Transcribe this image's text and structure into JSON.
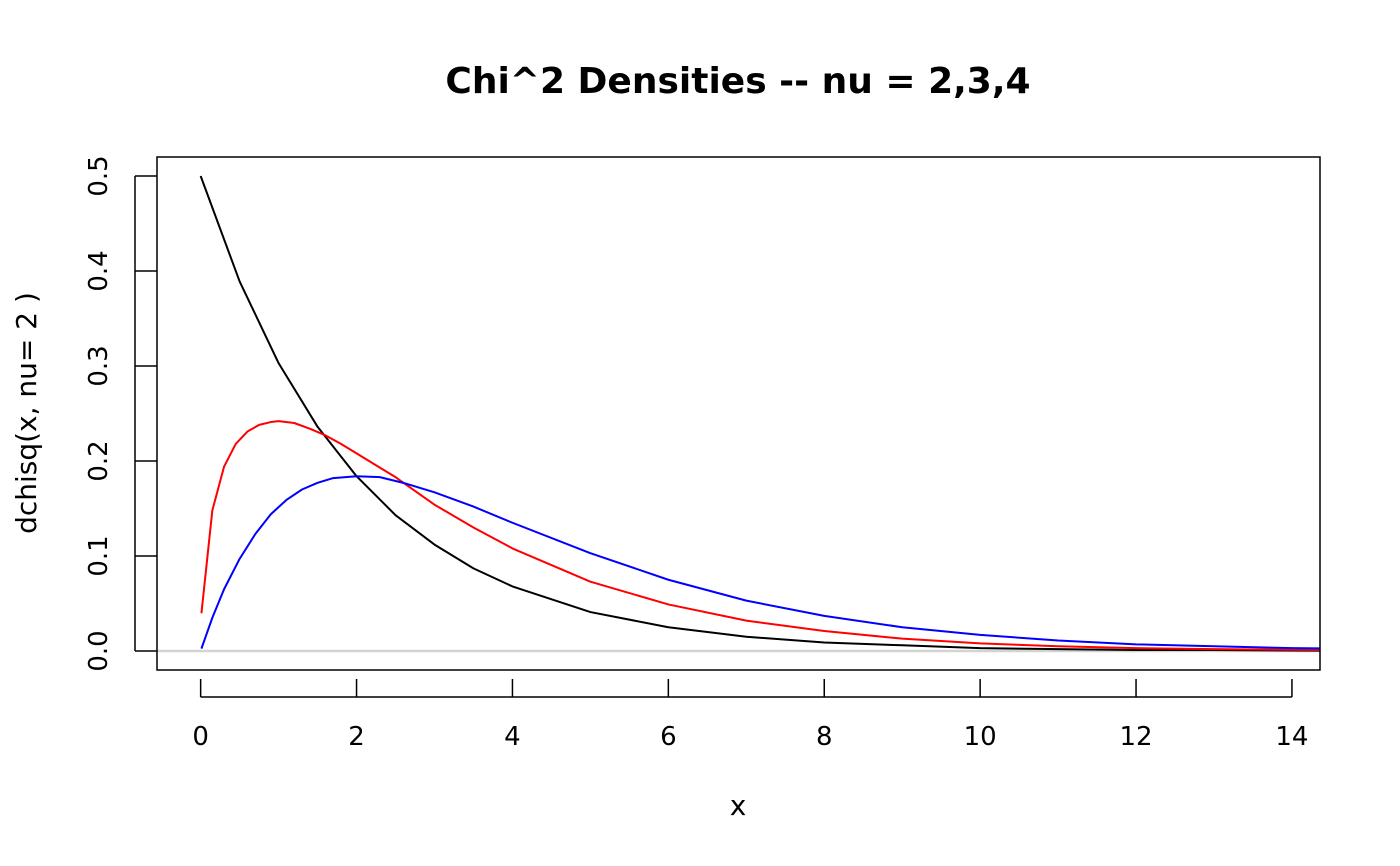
{
  "chart_data": {
    "type": "line",
    "title": "Chi^2 Densities -- nu = 2,3,4",
    "xlabel": "x",
    "ylabel": "dchisq(x, nu= 2 )",
    "xlim": [
      -0.56,
      14.36
    ],
    "ylim": [
      -0.02,
      0.52
    ],
    "x_ticks": [
      0,
      2,
      4,
      6,
      8,
      10,
      12,
      14
    ],
    "x_tick_labels": [
      "0",
      "2",
      "4",
      "6",
      "8",
      "10",
      "12",
      "14"
    ],
    "y_ticks": [
      0.0,
      0.1,
      0.2,
      0.3,
      0.4,
      0.5
    ],
    "y_tick_labels": [
      "0.0",
      "0.1",
      "0.2",
      "0.3",
      "0.4",
      "0.5"
    ],
    "grid": false,
    "reference_line": {
      "y": 0,
      "color": "#d3d3d3"
    },
    "series": [
      {
        "color": "#000000",
        "x": [
          0,
          0.5,
          1,
          1.5,
          2,
          2.5,
          3,
          3.5,
          4,
          5,
          6,
          7,
          8,
          9,
          10,
          11,
          12,
          13,
          14,
          14.4
        ],
        "y": [
          0.5,
          0.389,
          0.303,
          0.236,
          0.184,
          0.143,
          0.112,
          0.087,
          0.068,
          0.041,
          0.025,
          0.015,
          0.009,
          0.006,
          0.003,
          0.002,
          0.001,
          0.001,
          0.0005,
          0.0004
        ]
      },
      {
        "color": "#ff0000",
        "x": [
          0.01,
          0.15,
          0.3,
          0.45,
          0.6,
          0.75,
          0.9,
          1.0,
          1.2,
          1.4,
          1.6,
          1.8,
          2.0,
          2.5,
          3,
          3.5,
          4,
          5,
          6,
          7,
          8,
          9,
          10,
          11,
          12,
          13,
          14,
          14.4
        ],
        "y": [
          0.0397,
          0.148,
          0.194,
          0.218,
          0.231,
          0.238,
          0.241,
          0.242,
          0.24,
          0.234,
          0.227,
          0.218,
          0.208,
          0.183,
          0.154,
          0.13,
          0.108,
          0.073,
          0.049,
          0.032,
          0.021,
          0.013,
          0.008,
          0.005,
          0.003,
          0.002,
          0.0013,
          0.001
        ]
      },
      {
        "color": "#0000ff",
        "x": [
          0.01,
          0.15,
          0.3,
          0.5,
          0.7,
          0.9,
          1.1,
          1.3,
          1.5,
          1.7,
          2.0,
          2.3,
          2.6,
          3,
          3.5,
          4,
          5,
          6,
          7,
          8,
          9,
          10,
          11,
          12,
          13,
          14,
          14.4
        ],
        "y": [
          0.0025,
          0.035,
          0.065,
          0.097,
          0.123,
          0.144,
          0.159,
          0.17,
          0.177,
          0.182,
          0.184,
          0.183,
          0.177,
          0.167,
          0.152,
          0.135,
          0.103,
          0.075,
          0.053,
          0.037,
          0.025,
          0.017,
          0.011,
          0.007,
          0.005,
          0.003,
          0.0027
        ]
      }
    ]
  }
}
